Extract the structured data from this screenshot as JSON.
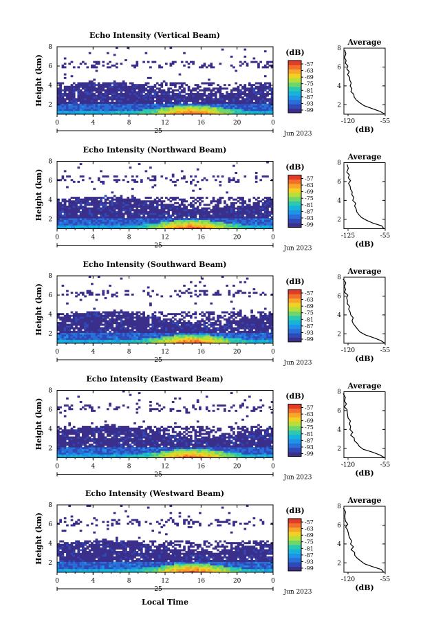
{
  "chart_data": [
    {
      "type": "heatmap",
      "title": "Echo Intensity (Vertical Beam)",
      "ylabel": "Height (km)",
      "xticks": [
        "0",
        "4",
        "8",
        "12",
        "16",
        "20",
        "0"
      ],
      "yticks": [
        "2",
        "4",
        "6",
        "8"
      ],
      "day_label": "25",
      "date_label": "Jun 2023",
      "xlim": [
        0,
        24
      ],
      "ylim": [
        1,
        8
      ],
      "colorbar_unit": "(dB)",
      "colorbar_ticks": [
        "-57",
        "-63",
        "-69",
        "-75",
        "-81",
        "-87",
        "-93",
        "-99"
      ],
      "average_title": "Average",
      "average_xticks": [
        "-120",
        "-55"
      ],
      "average_xlabel": "(dB)",
      "average_xlim": [
        -120,
        -55
      ],
      "average_yticks": [
        "2",
        "4",
        "6",
        "8"
      ]
    },
    {
      "type": "heatmap",
      "title": "Echo Intensity (Northward Beam)",
      "ylabel": "Height (km)",
      "xticks": [
        "0",
        "4",
        "8",
        "12",
        "16",
        "20",
        "0"
      ],
      "yticks": [
        "2",
        "4",
        "6",
        "8"
      ],
      "day_label": "25",
      "date_label": "Jun 2023",
      "xlim": [
        0,
        24
      ],
      "ylim": [
        1,
        8
      ],
      "colorbar_unit": "(dB)",
      "colorbar_ticks": [
        "-57",
        "-63",
        "-69",
        "-75",
        "-81",
        "-87",
        "-93",
        "-99"
      ],
      "average_title": "Average",
      "average_xticks": [
        "-125",
        "-55"
      ],
      "average_xlabel": "(dB)",
      "average_xlim": [
        -125,
        -55
      ],
      "average_yticks": [
        "2",
        "4",
        "6",
        "8"
      ]
    },
    {
      "type": "heatmap",
      "title": "Echo Intensity (Southward Beam)",
      "ylabel": "Height (km)",
      "xticks": [
        "0",
        "4",
        "8",
        "12",
        "16",
        "20",
        "0"
      ],
      "yticks": [
        "2",
        "4",
        "6",
        "8"
      ],
      "day_label": "25",
      "date_label": "Jun 2023",
      "xlim": [
        0,
        24
      ],
      "ylim": [
        1,
        8
      ],
      "colorbar_unit": "(dB)",
      "colorbar_ticks": [
        "-57",
        "-63",
        "-69",
        "-75",
        "-81",
        "-87",
        "-93",
        "-99"
      ],
      "average_title": "Average",
      "average_xticks": [
        "-120",
        "-55"
      ],
      "average_xlabel": "(dB)",
      "average_xlim": [
        -120,
        -55
      ],
      "average_yticks": [
        "2",
        "4",
        "6",
        "8"
      ]
    },
    {
      "type": "heatmap",
      "title": "Echo Intensity (Eastward Beam)",
      "ylabel": "Height (km)",
      "xticks": [
        "0",
        "4",
        "8",
        "12",
        "16",
        "20",
        "0"
      ],
      "yticks": [
        "2",
        "4",
        "6",
        "8"
      ],
      "day_label": "25",
      "date_label": "Jun 2023",
      "xlim": [
        0,
        24
      ],
      "ylim": [
        1,
        8
      ],
      "colorbar_unit": "(dB)",
      "colorbar_ticks": [
        "-57",
        "-63",
        "-69",
        "-75",
        "-81",
        "-87",
        "-93",
        "-99"
      ],
      "average_title": "Average",
      "average_xticks": [
        "-120",
        "-55"
      ],
      "average_xlabel": "(dB)",
      "average_xlim": [
        -120,
        -55
      ],
      "average_yticks": [
        "2",
        "4",
        "6",
        "8"
      ]
    },
    {
      "type": "heatmap",
      "title": "Echo Intensity (Westward Beam)",
      "ylabel": "Height (km)",
      "xticks": [
        "0",
        "4",
        "8",
        "12",
        "16",
        "20",
        "0"
      ],
      "yticks": [
        "2",
        "4",
        "6",
        "8"
      ],
      "day_label": "25",
      "date_label": "Jun 2023",
      "xlim": [
        0,
        24
      ],
      "ylim": [
        1,
        8
      ],
      "colorbar_unit": "(dB)",
      "colorbar_ticks": [
        "-57",
        "-63",
        "-69",
        "-75",
        "-81",
        "-87",
        "-93",
        "-99"
      ],
      "average_title": "Average",
      "average_xticks": [
        "-120",
        "-55"
      ],
      "average_xlabel": "(dB)",
      "average_xlim": [
        -120,
        -55
      ],
      "average_yticks": [
        "2",
        "4",
        "6",
        "8"
      ]
    }
  ],
  "bottom_xlabel": "Local Time",
  "colorbar_colors": [
    "#3a2f8a",
    "#2f49b8",
    "#2a6fd8",
    "#1e93e8",
    "#17b3d8",
    "#2cc8b0",
    "#6ed66a",
    "#b8de3a",
    "#f0d224",
    "#f8a52a",
    "#f2702c",
    "#e03c28"
  ],
  "average_profile": [
    {
      "h": 1.0,
      "v": -56
    },
    {
      "h": 1.3,
      "v": -62
    },
    {
      "h": 1.6,
      "v": -75
    },
    {
      "h": 1.9,
      "v": -88
    },
    {
      "h": 2.2,
      "v": -95
    },
    {
      "h": 2.5,
      "v": -99
    },
    {
      "h": 2.8,
      "v": -103
    },
    {
      "h": 3.1,
      "v": -104
    },
    {
      "h": 3.4,
      "v": -108
    },
    {
      "h": 3.7,
      "v": -106
    },
    {
      "h": 4.0,
      "v": -110
    },
    {
      "h": 4.3,
      "v": -109
    },
    {
      "h": 4.6,
      "v": -112
    },
    {
      "h": 4.9,
      "v": -111
    },
    {
      "h": 5.2,
      "v": -114
    },
    {
      "h": 5.5,
      "v": -113
    },
    {
      "h": 5.8,
      "v": -116
    },
    {
      "h": 6.1,
      "v": -115
    },
    {
      "h": 6.4,
      "v": -118
    },
    {
      "h": 6.7,
      "v": -117
    },
    {
      "h": 7.0,
      "v": -119
    },
    {
      "h": 7.4,
      "v": -118
    },
    {
      "h": 7.8,
      "v": -120
    }
  ]
}
